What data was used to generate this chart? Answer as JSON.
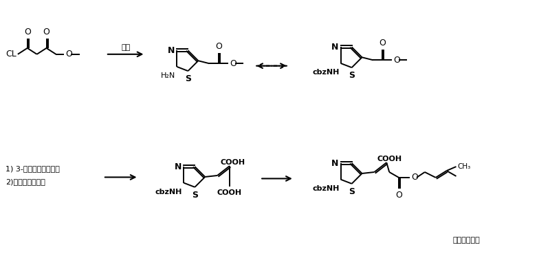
{
  "bg_color": "#ffffff",
  "figsize": [
    8.0,
    3.69
  ],
  "dpi": 100,
  "title": "头孢布烯侧链",
  "reagent1": "硫脲",
  "reagent2": "1) 3-甲氧基丙烯酸甲酯",
  "reagent3": "2)氢氧化鑰水溶液",
  "lw": 1.4,
  "font_size_label": 9,
  "font_size_small": 8,
  "font_size_tiny": 7.5
}
